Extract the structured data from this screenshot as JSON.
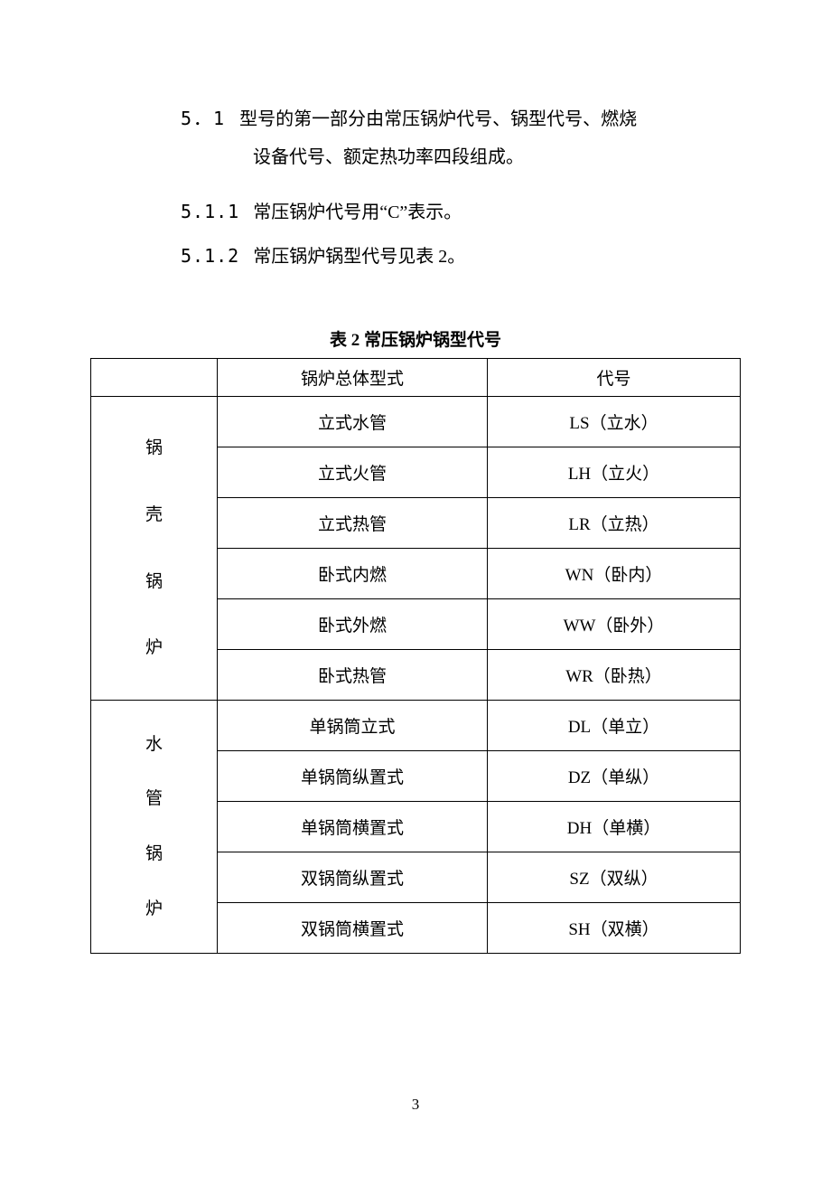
{
  "text": {
    "s5_1_num": "5．1",
    "s5_1_line1": "型号的第一部分由常压锅炉代号、锅型代号、燃烧",
    "s5_1_line2": "设备代号、额定热功率四段组成。",
    "s5_1_1_num": "5.1.1",
    "s5_1_1_text": "常压锅炉代号用“C”表示。",
    "s5_1_2_num": "5.1.2",
    "s5_1_2_text": "常压锅炉锅型代号见表 2。",
    "table_title": "表 2   常压锅炉锅型代号",
    "page_num": "3"
  },
  "table": {
    "header_cat": "",
    "header_type": "锅炉总体型式",
    "header_code": "代号",
    "groups": [
      {
        "label_chars": [
          "锅",
          "壳",
          "锅",
          "炉"
        ],
        "rows": [
          {
            "type": "立式水管",
            "code": "LS（立水）"
          },
          {
            "type": "立式火管",
            "code": "LH（立火）"
          },
          {
            "type": "立式热管",
            "code": "LR（立热）"
          },
          {
            "type": "卧式内燃",
            "code": "WN（卧内）"
          },
          {
            "type": "卧式外燃",
            "code": "WW（卧外）"
          },
          {
            "type": "卧式热管",
            "code": "WR（卧热）"
          }
        ]
      },
      {
        "label_chars": [
          "水",
          "管",
          "锅",
          "炉"
        ],
        "rows": [
          {
            "type": "单锅筒立式",
            "code": "DL（单立）"
          },
          {
            "type": "单锅筒纵置式",
            "code": "DZ（单纵）"
          },
          {
            "type": "单锅筒横置式",
            "code": "DH（单横）"
          },
          {
            "type": "双锅筒纵置式",
            "code": "SZ（双纵）"
          },
          {
            "type": "双锅筒横置式",
            "code": "SH（双横）"
          }
        ]
      }
    ]
  },
  "style": {
    "text_color": "#000000",
    "bg_color": "#ffffff",
    "border_color": "#000000",
    "body_fontsize": 20,
    "table_fontsize": 19
  }
}
